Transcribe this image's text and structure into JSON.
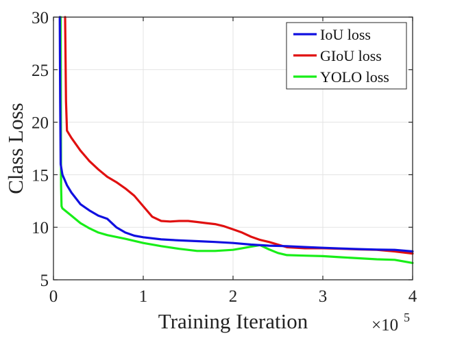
{
  "chart_data": {
    "type": "line",
    "title": "",
    "xlabel": "Training Iteration",
    "ylabel": "Class Loss",
    "xlim": [
      0,
      4
    ],
    "ylim": [
      5,
      30
    ],
    "x_multiplier": "×10",
    "x_multiplier_exp": "5",
    "x_ticks": [
      0,
      1,
      2,
      3,
      4
    ],
    "x_tick_labels": [
      "0",
      "1",
      "2",
      "3",
      "4"
    ],
    "y_ticks": [
      5,
      10,
      15,
      20,
      25,
      30
    ],
    "y_tick_labels": [
      "5",
      "10",
      "15",
      "20",
      "25",
      "30"
    ],
    "grid": true,
    "legend_position": "top-right",
    "series": [
      {
        "name": "IoU loss",
        "color": "#1010e0",
        "points": [
          [
            0.07,
            30
          ],
          [
            0.075,
            22
          ],
          [
            0.08,
            16
          ],
          [
            0.1,
            15
          ],
          [
            0.15,
            14
          ],
          [
            0.2,
            13.3
          ],
          [
            0.3,
            12.2
          ],
          [
            0.4,
            11.6
          ],
          [
            0.5,
            11.1
          ],
          [
            0.6,
            10.8
          ],
          [
            0.7,
            10.0
          ],
          [
            0.8,
            9.5
          ],
          [
            0.9,
            9.2
          ],
          [
            1.0,
            9.05
          ],
          [
            1.2,
            8.85
          ],
          [
            1.4,
            8.75
          ],
          [
            1.6,
            8.68
          ],
          [
            1.8,
            8.6
          ],
          [
            2.0,
            8.5
          ],
          [
            2.2,
            8.35
          ],
          [
            2.4,
            8.25
          ],
          [
            2.6,
            8.2
          ],
          [
            2.8,
            8.12
          ],
          [
            3.0,
            8.05
          ],
          [
            3.2,
            7.98
          ],
          [
            3.4,
            7.92
          ],
          [
            3.6,
            7.88
          ],
          [
            3.8,
            7.85
          ],
          [
            4.0,
            7.7
          ]
        ]
      },
      {
        "name": "GIoU loss",
        "color": "#e01010",
        "points": [
          [
            0.13,
            30
          ],
          [
            0.14,
            22
          ],
          [
            0.15,
            19.2
          ],
          [
            0.2,
            18.5
          ],
          [
            0.3,
            17.3
          ],
          [
            0.4,
            16.3
          ],
          [
            0.5,
            15.5
          ],
          [
            0.6,
            14.8
          ],
          [
            0.7,
            14.3
          ],
          [
            0.8,
            13.7
          ],
          [
            0.9,
            13.0
          ],
          [
            1.0,
            12.0
          ],
          [
            1.1,
            11.0
          ],
          [
            1.2,
            10.6
          ],
          [
            1.3,
            10.55
          ],
          [
            1.4,
            10.6
          ],
          [
            1.5,
            10.6
          ],
          [
            1.6,
            10.5
          ],
          [
            1.7,
            10.4
          ],
          [
            1.8,
            10.3
          ],
          [
            1.9,
            10.1
          ],
          [
            2.0,
            9.8
          ],
          [
            2.1,
            9.5
          ],
          [
            2.2,
            9.1
          ],
          [
            2.3,
            8.8
          ],
          [
            2.4,
            8.6
          ],
          [
            2.6,
            8.1
          ],
          [
            2.8,
            8.0
          ],
          [
            3.0,
            8.0
          ],
          [
            3.2,
            7.95
          ],
          [
            3.4,
            7.9
          ],
          [
            3.6,
            7.85
          ],
          [
            3.8,
            7.7
          ],
          [
            4.0,
            7.5
          ]
        ]
      },
      {
        "name": "YOLO loss",
        "color": "#18ee18",
        "points": [
          [
            0.08,
            30
          ],
          [
            0.085,
            14
          ],
          [
            0.09,
            12.0
          ],
          [
            0.1,
            11.8
          ],
          [
            0.2,
            11.1
          ],
          [
            0.3,
            10.4
          ],
          [
            0.4,
            9.9
          ],
          [
            0.5,
            9.5
          ],
          [
            0.6,
            9.25
          ],
          [
            0.8,
            8.9
          ],
          [
            1.0,
            8.5
          ],
          [
            1.2,
            8.2
          ],
          [
            1.4,
            7.95
          ],
          [
            1.6,
            7.75
          ],
          [
            1.8,
            7.75
          ],
          [
            2.0,
            7.85
          ],
          [
            2.1,
            8.0
          ],
          [
            2.2,
            8.15
          ],
          [
            2.3,
            8.3
          ],
          [
            2.4,
            7.9
          ],
          [
            2.5,
            7.55
          ],
          [
            2.6,
            7.35
          ],
          [
            2.8,
            7.3
          ],
          [
            3.0,
            7.25
          ],
          [
            3.2,
            7.15
          ],
          [
            3.4,
            7.05
          ],
          [
            3.6,
            6.95
          ],
          [
            3.8,
            6.9
          ],
          [
            4.0,
            6.6
          ]
        ]
      }
    ]
  }
}
